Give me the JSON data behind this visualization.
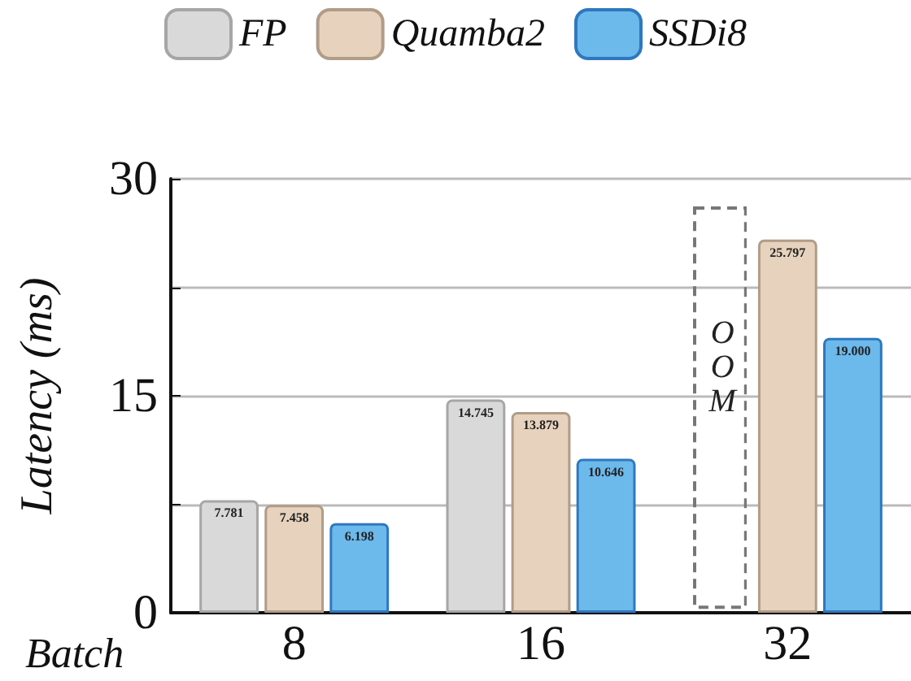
{
  "chart_data": {
    "type": "bar",
    "xlabel": "Batch",
    "ylabel": "Latency (ms)",
    "categories": [
      "8",
      "16",
      "32"
    ],
    "series": [
      {
        "name": "FP",
        "color": "#d9d9d9",
        "values": [
          7.781,
          14.745,
          null
        ],
        "value_labels": [
          "7.781",
          "14.745",
          null
        ]
      },
      {
        "name": "Quamba2",
        "color": "#e6d2bd",
        "values": [
          7.458,
          13.879,
          25.797
        ],
        "value_labels": [
          "7.458",
          "13.879",
          "25.797"
        ]
      },
      {
        "name": "SSDi8",
        "color": "#6cb9ec",
        "values": [
          6.198,
          10.646,
          19.0
        ],
        "value_labels": [
          "6.198",
          "10.646",
          "19.000"
        ]
      }
    ],
    "ylim": [
      0,
      30
    ],
    "yticks": [
      0,
      {
        "value": 7.5,
        "label": null
      },
      15,
      {
        "value": 22.5,
        "label": null
      },
      30
    ],
    "grid": true,
    "legend": "top",
    "annotations": [
      "OOM"
    ]
  }
}
